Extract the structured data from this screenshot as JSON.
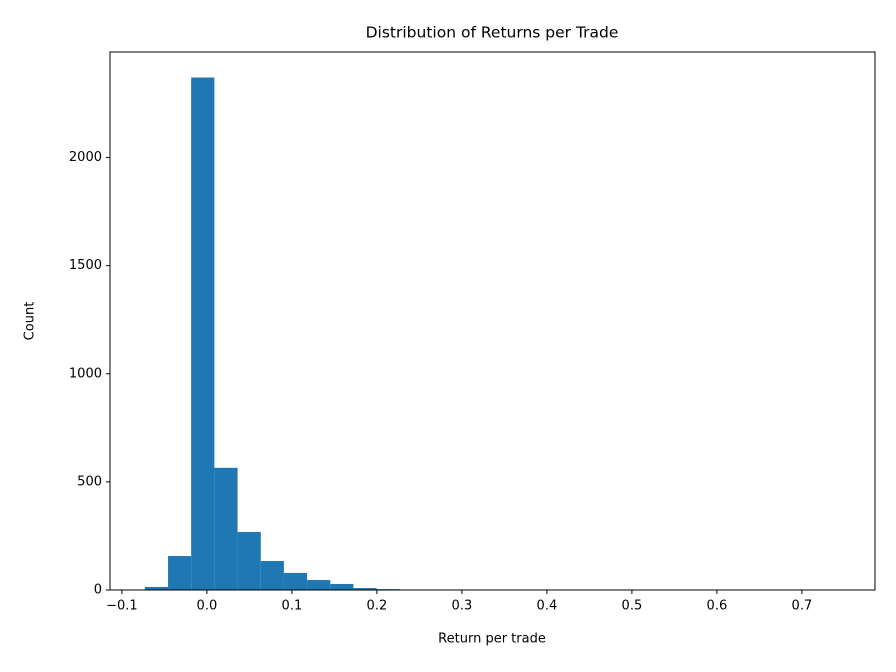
{
  "chart_data": {
    "type": "histogram",
    "title": "Distribution of Returns per Trade",
    "x_label": "Return per trade",
    "y_label": "Count",
    "color": "#1f77b4",
    "bins": [
      -0.073,
      -0.0457,
      -0.0185,
      0.0088,
      0.0361,
      0.0634,
      0.0906,
      0.1179,
      0.1452,
      0.1724,
      0.1997,
      0.227,
      0.2542,
      0.2815,
      0.3088,
      0.3361,
      0.3633,
      0.3906,
      0.4179,
      0.4451,
      0.4724,
      0.4997,
      0.5269,
      0.5542,
      0.5815,
      0.6088,
      0.636,
      0.6633,
      0.6906,
      0.7178,
      0.7451
    ],
    "values": [
      14,
      157,
      2370,
      565,
      268,
      134,
      79,
      46,
      28,
      9,
      4,
      2,
      1,
      1,
      1,
      0,
      1,
      0,
      0,
      0,
      0,
      0,
      0,
      0,
      0,
      0,
      0,
      0,
      0,
      0
    ],
    "xlim": [
      -0.114,
      0.786
    ],
    "xticks": [
      {
        "value": -0.1,
        "label": "−0.1"
      },
      {
        "value": 0,
        "label": "0.0"
      },
      0.1,
      0.2,
      0.3,
      0.4,
      0.5,
      0.6,
      0.7
    ],
    "ylim": [
      0,
      2488
    ],
    "yticks": [
      0,
      500,
      1000,
      1500,
      2000
    ]
  }
}
